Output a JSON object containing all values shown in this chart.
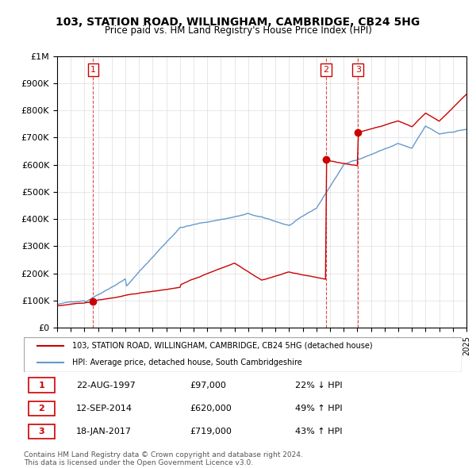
{
  "title": "103, STATION ROAD, WILLINGHAM, CAMBRIDGE, CB24 5HG",
  "subtitle": "Price paid vs. HM Land Registry's House Price Index (HPI)",
  "legend_line1": "103, STATION ROAD, WILLINGHAM, CAMBRIDGE, CB24 5HG (detached house)",
  "legend_line2": "HPI: Average price, detached house, South Cambridgeshire",
  "sale_color": "#cc0000",
  "hpi_color": "#6699cc",
  "transactions": [
    {
      "label": "1",
      "date": "22-AUG-1997",
      "year": 1997.64,
      "price": 97000,
      "note": "22% ↓ HPI"
    },
    {
      "label": "2",
      "date": "12-SEP-2014",
      "year": 2014.7,
      "price": 620000,
      "note": "49% ↑ HPI"
    },
    {
      "label": "3",
      "date": "18-JAN-2017",
      "year": 2017.05,
      "price": 719000,
      "note": "43% ↑ HPI"
    }
  ],
  "footer1": "Contains HM Land Registry data © Crown copyright and database right 2024.",
  "footer2": "This data is licensed under the Open Government Licence v3.0.",
  "ylim": [
    0,
    1000000
  ],
  "xlim_start": 1995,
  "xlim_end": 2025
}
